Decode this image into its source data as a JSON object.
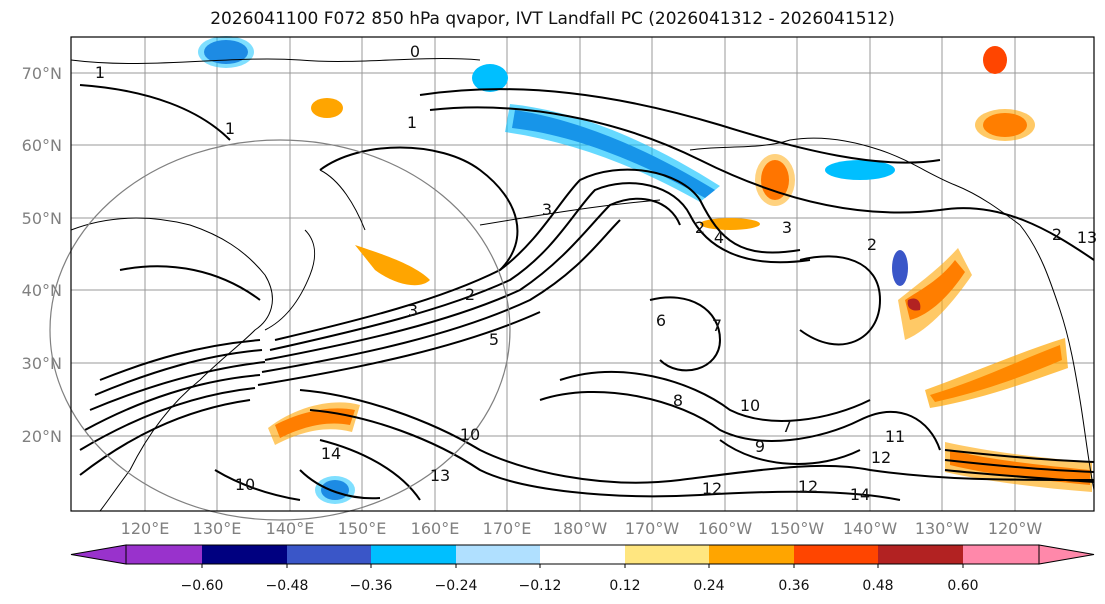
{
  "title": "2026041100 F072 850 hPa qvapor, IVT Landfall PC (2026041312 - 2026041512)",
  "map": {
    "lat_labels": [
      "70°N",
      "60°N",
      "50°N",
      "40°N",
      "30°N",
      "20°N"
    ],
    "lon_labels": [
      "120°E",
      "130°E",
      "140°E",
      "150°E",
      "160°E",
      "170°E",
      "180°W",
      "170°W",
      "160°W",
      "150°W",
      "140°W",
      "130°W",
      "120°W"
    ],
    "contour_labels": [
      "0",
      "1",
      "1",
      "1",
      "2",
      "2",
      "3",
      "3",
      "4",
      "2",
      "3",
      "2",
      "5",
      "6",
      "7",
      "7",
      "8",
      "9",
      "10",
      "10",
      "11",
      "12",
      "12",
      "13",
      "14",
      "14",
      "10",
      "12",
      "13"
    ],
    "gridline_color": "#999999",
    "coast_color": "#000000"
  },
  "colorbar": {
    "tick_labels": [
      "−0.60",
      "−0.48",
      "−0.36",
      "−0.24",
      "−0.12",
      "0.12",
      "0.24",
      "0.36",
      "0.48",
      "0.60"
    ],
    "colors": [
      "#9932CC",
      "#000080",
      "#3A56C8",
      "#00BFFF",
      "#B0E0FF",
      "#FFFFFF",
      "#FFE680",
      "#FFA500",
      "#FF4500",
      "#B22222",
      "#FF88AA"
    ]
  }
}
